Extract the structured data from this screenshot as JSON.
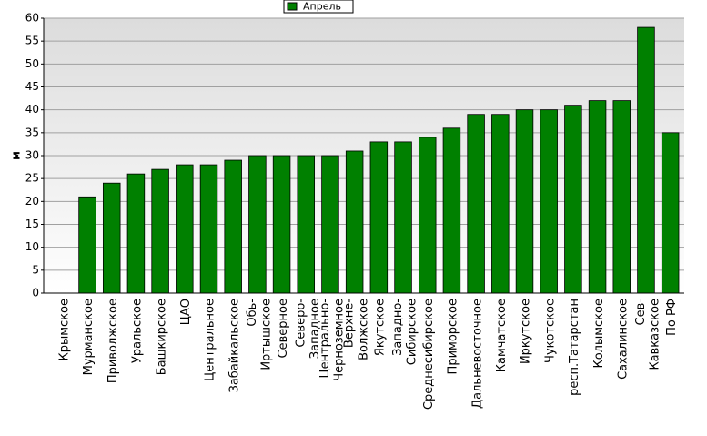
{
  "chart_data": {
    "type": "bar",
    "y_label": "м",
    "categories": [
      "Крымское",
      "Мурманское",
      "Приволжское",
      "Уральское",
      "Башкирское",
      "ЦАО",
      "Центральное",
      "Забайкальское",
      "Обь-Иртышское",
      "Северное",
      "Северо-Западное",
      "Центрально-Черноземное",
      "Верхне-Волжское",
      "Якутское",
      "Западно-Сибирское",
      "Среднесибирское",
      "Приморское",
      "Дальневосточное",
      "Камчатское",
      "Иркутское",
      "Чукотское",
      "респ.Татарстан",
      "Колымское",
      "Сахалинское",
      "Сев-Кавказское",
      "По РФ"
    ],
    "series": [
      {
        "name": "Апрель",
        "color": "#008000",
        "values": [
          0,
          21,
          24,
          26,
          27,
          28,
          28,
          29,
          30,
          30,
          30,
          30,
          31,
          33,
          33,
          34,
          36,
          39,
          39,
          40,
          40,
          41,
          42,
          42,
          58,
          35
        ]
      }
    ],
    "ylim": [
      0,
      60
    ],
    "yticks": [
      0,
      5,
      10,
      15,
      20,
      25,
      30,
      35,
      40,
      45,
      50,
      55,
      60
    ],
    "grid": true
  }
}
